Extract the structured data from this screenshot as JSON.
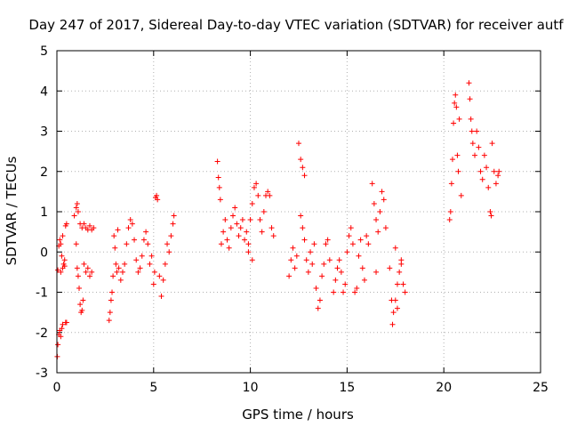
{
  "chart_data": {
    "type": "scatter",
    "title": "Day 247 of 2017, Sidereal Day-to-day VTEC variation (SDTVAR) for receiver autf",
    "xlabel": "GPS time / hours",
    "ylabel": "SDTVAR / TECUs",
    "xlim": [
      0,
      25
    ],
    "ylim": [
      -3,
      5
    ],
    "xticks": [
      "0",
      "5",
      "10",
      "15",
      "20",
      "25"
    ],
    "yticks": [
      "-3",
      "-2",
      "-1",
      "0",
      "1",
      "2",
      "3",
      "4",
      "5"
    ],
    "grid": true,
    "marker": "+",
    "colors": {
      "series": "#ff0000",
      "grid": "#b0b0b0",
      "axis": "#000000"
    },
    "series": [
      {
        "name": "SDTVAR",
        "points": [
          [
            0.02,
            -2.6
          ],
          [
            0.05,
            -2.3
          ],
          [
            0.1,
            -2.05
          ],
          [
            0.15,
            -1.95
          ],
          [
            0.2,
            -2.1
          ],
          [
            0.25,
            -1.9
          ],
          [
            0.3,
            -1.8
          ],
          [
            0.45,
            -1.75
          ],
          [
            0.5,
            -1.75
          ],
          [
            0.05,
            -0.45
          ],
          [
            0.1,
            0.15
          ],
          [
            0.15,
            0.3
          ],
          [
            0.2,
            0.2
          ],
          [
            0.25,
            -0.1
          ],
          [
            0.3,
            0.4
          ],
          [
            0.35,
            -0.3
          ],
          [
            0.4,
            -0.2
          ],
          [
            0.45,
            0.65
          ],
          [
            0.5,
            0.7
          ],
          [
            0.2,
            -0.5
          ],
          [
            0.3,
            -0.4
          ],
          [
            0.4,
            -0.35
          ],
          [
            0.9,
            0.9
          ],
          [
            1.0,
            1.1
          ],
          [
            1.05,
            1.2
          ],
          [
            1.1,
            1.0
          ],
          [
            1.0,
            0.2
          ],
          [
            1.05,
            -0.4
          ],
          [
            1.1,
            -0.6
          ],
          [
            1.15,
            -0.9
          ],
          [
            1.2,
            -1.3
          ],
          [
            1.25,
            -1.5
          ],
          [
            1.3,
            -1.45
          ],
          [
            1.35,
            -1.2
          ],
          [
            1.2,
            0.7
          ],
          [
            1.3,
            0.6
          ],
          [
            1.4,
            0.7
          ],
          [
            1.5,
            0.6
          ],
          [
            1.6,
            0.55
          ],
          [
            1.7,
            0.65
          ],
          [
            1.8,
            0.55
          ],
          [
            1.9,
            0.6
          ],
          [
            1.4,
            -0.3
          ],
          [
            1.5,
            -0.5
          ],
          [
            1.6,
            -0.4
          ],
          [
            1.7,
            -0.6
          ],
          [
            1.8,
            -0.5
          ],
          [
            2.7,
            -1.7
          ],
          [
            2.75,
            -1.5
          ],
          [
            2.8,
            -1.2
          ],
          [
            2.85,
            -1.0
          ],
          [
            2.9,
            -0.6
          ],
          [
            2.95,
            0.4
          ],
          [
            3.0,
            0.1
          ],
          [
            3.05,
            -0.3
          ],
          [
            3.1,
            -0.5
          ],
          [
            3.15,
            0.55
          ],
          [
            3.2,
            -0.4
          ],
          [
            3.3,
            -0.7
          ],
          [
            3.4,
            -0.5
          ],
          [
            3.5,
            -0.3
          ],
          [
            3.6,
            0.2
          ],
          [
            3.7,
            0.6
          ],
          [
            3.8,
            0.8
          ],
          [
            3.9,
            0.7
          ],
          [
            4.0,
            0.3
          ],
          [
            4.1,
            -0.2
          ],
          [
            4.2,
            -0.5
          ],
          [
            4.3,
            -0.4
          ],
          [
            4.4,
            -0.1
          ],
          [
            4.5,
            0.3
          ],
          [
            4.6,
            0.5
          ],
          [
            4.7,
            0.2
          ],
          [
            4.8,
            -0.3
          ],
          [
            4.9,
            -0.1
          ],
          [
            5.0,
            -0.8
          ],
          [
            5.05,
            -0.5
          ],
          [
            5.1,
            1.35
          ],
          [
            5.15,
            1.4
          ],
          [
            5.2,
            1.3
          ],
          [
            5.3,
            -0.6
          ],
          [
            5.4,
            -1.1
          ],
          [
            5.5,
            -0.7
          ],
          [
            5.6,
            -0.3
          ],
          [
            5.7,
            0.2
          ],
          [
            5.8,
            0.0
          ],
          [
            5.9,
            0.4
          ],
          [
            6.0,
            0.7
          ],
          [
            6.05,
            0.9
          ],
          [
            8.3,
            2.25
          ],
          [
            8.35,
            1.85
          ],
          [
            8.4,
            1.6
          ],
          [
            8.45,
            1.3
          ],
          [
            8.5,
            0.2
          ],
          [
            8.6,
            0.5
          ],
          [
            8.7,
            0.8
          ],
          [
            8.8,
            0.3
          ],
          [
            8.9,
            0.1
          ],
          [
            9.0,
            0.6
          ],
          [
            9.1,
            0.9
          ],
          [
            9.2,
            1.1
          ],
          [
            9.3,
            0.7
          ],
          [
            9.4,
            0.4
          ],
          [
            9.5,
            0.6
          ],
          [
            9.6,
            0.8
          ],
          [
            9.7,
            0.3
          ],
          [
            9.8,
            0.5
          ],
          [
            9.9,
            0.2
          ],
          [
            10.0,
            0.8
          ],
          [
            10.1,
            1.2
          ],
          [
            10.2,
            1.6
          ],
          [
            10.3,
            1.7
          ],
          [
            10.4,
            1.4
          ],
          [
            10.5,
            0.8
          ],
          [
            10.6,
            0.5
          ],
          [
            10.7,
            1.0
          ],
          [
            10.8,
            1.4
          ],
          [
            10.9,
            1.5
          ],
          [
            11.0,
            1.4
          ],
          [
            11.1,
            0.6
          ],
          [
            11.2,
            0.4
          ],
          [
            10.1,
            -0.2
          ],
          [
            9.9,
            0.0
          ],
          [
            12.0,
            -0.6
          ],
          [
            12.1,
            -0.2
          ],
          [
            12.2,
            0.1
          ],
          [
            12.3,
            -0.4
          ],
          [
            12.4,
            -0.1
          ],
          [
            12.5,
            2.7
          ],
          [
            12.6,
            2.3
          ],
          [
            12.7,
            2.1
          ],
          [
            12.8,
            1.9
          ],
          [
            12.6,
            0.9
          ],
          [
            12.7,
            0.6
          ],
          [
            12.8,
            0.3
          ],
          [
            12.9,
            -0.2
          ],
          [
            13.0,
            -0.5
          ],
          [
            13.1,
            0.0
          ],
          [
            13.2,
            -0.3
          ],
          [
            13.3,
            0.2
          ],
          [
            13.4,
            -0.9
          ],
          [
            13.5,
            -1.4
          ],
          [
            13.6,
            -1.2
          ],
          [
            13.7,
            -0.6
          ],
          [
            13.8,
            -0.3
          ],
          [
            13.9,
            0.2
          ],
          [
            14.0,
            0.3
          ],
          [
            14.1,
            -0.2
          ],
          [
            14.3,
            -1.0
          ],
          [
            14.4,
            -0.7
          ],
          [
            14.5,
            -0.4
          ],
          [
            14.6,
            -0.2
          ],
          [
            14.7,
            -0.5
          ],
          [
            14.8,
            -1.0
          ],
          [
            14.9,
            -0.8
          ],
          [
            15.0,
            0.0
          ],
          [
            15.1,
            0.4
          ],
          [
            15.2,
            0.6
          ],
          [
            15.3,
            0.2
          ],
          [
            15.4,
            -1.0
          ],
          [
            15.5,
            -0.9
          ],
          [
            15.6,
            -0.1
          ],
          [
            15.7,
            0.3
          ],
          [
            15.8,
            -0.4
          ],
          [
            15.9,
            -0.7
          ],
          [
            16.0,
            0.4
          ],
          [
            16.1,
            0.2
          ],
          [
            16.3,
            1.7
          ],
          [
            16.4,
            1.2
          ],
          [
            16.5,
            0.8
          ],
          [
            16.6,
            0.5
          ],
          [
            16.7,
            1.0
          ],
          [
            16.8,
            1.5
          ],
          [
            16.9,
            1.3
          ],
          [
            17.0,
            0.6
          ],
          [
            16.5,
            -0.5
          ],
          [
            17.2,
            -0.4
          ],
          [
            17.3,
            -1.2
          ],
          [
            17.35,
            -1.8
          ],
          [
            17.4,
            -1.5
          ],
          [
            17.5,
            -1.2
          ],
          [
            17.6,
            -0.8
          ],
          [
            17.7,
            -0.5
          ],
          [
            17.8,
            -0.3
          ],
          [
            17.9,
            -0.8
          ],
          [
            18.0,
            -1.0
          ],
          [
            17.6,
            -1.4
          ],
          [
            17.5,
            0.1
          ],
          [
            17.8,
            -0.2
          ],
          [
            20.3,
            0.8
          ],
          [
            20.35,
            1.0
          ],
          [
            20.4,
            1.7
          ],
          [
            20.45,
            2.3
          ],
          [
            20.5,
            3.2
          ],
          [
            20.55,
            3.7
          ],
          [
            20.6,
            3.9
          ],
          [
            20.65,
            3.6
          ],
          [
            20.7,
            2.4
          ],
          [
            20.75,
            2.0
          ],
          [
            20.8,
            3.3
          ],
          [
            20.9,
            1.4
          ],
          [
            21.3,
            4.2
          ],
          [
            21.35,
            3.8
          ],
          [
            21.4,
            3.3
          ],
          [
            21.45,
            3.0
          ],
          [
            21.5,
            2.7
          ],
          [
            21.6,
            2.4
          ],
          [
            21.7,
            3.0
          ],
          [
            21.8,
            2.6
          ],
          [
            21.9,
            2.0
          ],
          [
            22.0,
            1.8
          ],
          [
            22.1,
            2.4
          ],
          [
            22.2,
            2.1
          ],
          [
            22.3,
            1.6
          ],
          [
            22.4,
            1.0
          ],
          [
            22.45,
            0.9
          ],
          [
            22.5,
            2.7
          ],
          [
            22.6,
            2.0
          ],
          [
            22.7,
            1.7
          ],
          [
            22.8,
            1.9
          ],
          [
            22.85,
            2.0
          ]
        ]
      }
    ]
  }
}
